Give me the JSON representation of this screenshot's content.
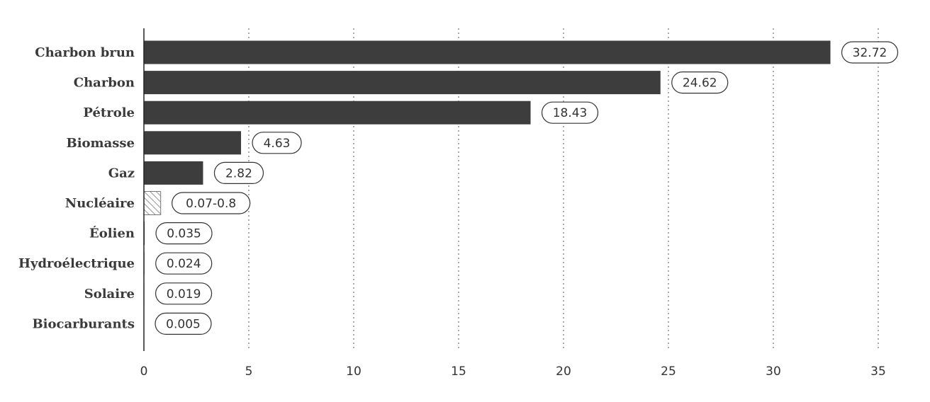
{
  "chart_data": {
    "type": "bar",
    "orientation": "horizontal",
    "categories": [
      "Charbon brun",
      "Charbon",
      "Pétrole",
      "Biomasse",
      "Gaz",
      "Nucléaire",
      "Éolien",
      "Hydroélectrique",
      "Solaire",
      "Biocarburants"
    ],
    "values": [
      32.72,
      24.62,
      18.43,
      4.63,
      2.82,
      0.8,
      0.035,
      0.024,
      0.019,
      0.005
    ],
    "value_labels": [
      "32.72",
      "24.62",
      "18.43",
      "4.63",
      "2.82",
      "0.07-0.8",
      "0.035",
      "0.024",
      "0.019",
      "0.005"
    ],
    "hatched": [
      false,
      false,
      false,
      false,
      false,
      true,
      false,
      false,
      false,
      false
    ],
    "xlim": [
      0,
      35
    ],
    "xticks": [
      "0",
      "5",
      "10",
      "15",
      "20",
      "25",
      "30",
      "35"
    ],
    "grid": "vertical dotted",
    "colors": {
      "bar": "#3d3d3d",
      "hatch": "#777777",
      "grid": "#555555"
    },
    "title": "",
    "xlabel": "",
    "ylabel": ""
  }
}
